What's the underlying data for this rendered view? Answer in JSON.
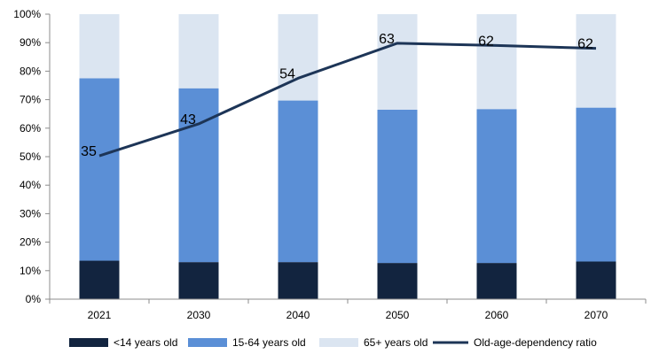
{
  "chart_data": {
    "type": "bar",
    "stacked": true,
    "percent_axis": true,
    "categories": [
      "2021",
      "2030",
      "2040",
      "2050",
      "2060",
      "2070"
    ],
    "series": [
      {
        "name": "<14 years old",
        "type": "bar",
        "color": "#12243f",
        "values": [
          13.5,
          13,
          13,
          12.7,
          12.7,
          13.2
        ]
      },
      {
        "name": "15-64 years old",
        "type": "bar",
        "color": "#5b8fd6",
        "values": [
          64,
          61,
          56.7,
          53.8,
          54,
          54
        ]
      },
      {
        "name": "65+ years old",
        "type": "bar",
        "color": "#dbe5f1",
        "values": [
          22.5,
          26,
          30.3,
          33.5,
          33.3,
          32.8
        ]
      },
      {
        "name": "Old-age-dependency ratio",
        "type": "line",
        "color": "#1d3557",
        "values": [
          35,
          43,
          54,
          63,
          62,
          62
        ],
        "plotted_percent": [
          50.3,
          61.5,
          77.5,
          89.8,
          89,
          88
        ]
      }
    ],
    "data_labels": [
      "35",
      "43",
      "54",
      "63",
      "62",
      "62"
    ],
    "ylim": [
      0,
      100
    ],
    "yticks": [
      "0%",
      "10%",
      "20%",
      "30%",
      "40%",
      "50%",
      "60%",
      "70%",
      "80%",
      "90%",
      "100%"
    ],
    "grid": false,
    "legend_position": "bottom",
    "title": "",
    "xlabel": "",
    "ylabel": ""
  }
}
